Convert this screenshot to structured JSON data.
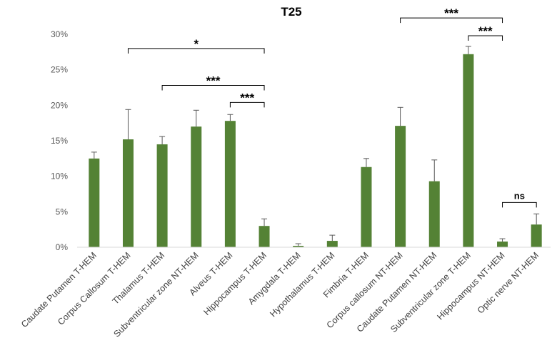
{
  "chart_data": {
    "type": "bar",
    "title": "T25",
    "categories": [
      "Caudate Putamen T-HEM",
      "Corpus Callosum T-HEM",
      "Thalamus T-HEM",
      "Subventricular zone NT-HEM",
      "Alveus T-HEM",
      "Hippocampus T-HEM",
      "Amygdala T-HEM",
      "Hypothalamus T-HEM",
      "Fimbria T-HEM",
      "Corpus callosum NT-HEM",
      "Caudate Putamen NT-HEM",
      "Subventricular zone T-HEM",
      "Hippocampus NT-HEM",
      "Optic nerve NT-HEM"
    ],
    "values": [
      12.5,
      15.2,
      14.5,
      17.0,
      17.8,
      3.0,
      0.2,
      0.9,
      11.3,
      17.1,
      9.3,
      27.2,
      0.8,
      3.2
    ],
    "errors": [
      0.9,
      4.2,
      1.1,
      2.3,
      0.9,
      1.0,
      0.3,
      0.8,
      1.2,
      2.6,
      3.0,
      1.1,
      0.4,
      1.5
    ],
    "ylim": [
      0,
      30
    ],
    "yticks": [
      0,
      5,
      10,
      15,
      20,
      25,
      30
    ],
    "ytick_labels": [
      "0%",
      "5%",
      "10%",
      "15%",
      "20%",
      "25%",
      "30%"
    ],
    "xlabel": "",
    "ylabel": "",
    "bar_color": "#548235",
    "error_color": "#595959",
    "grid": false,
    "legend": "none",
    "annotations": [
      {
        "from": 1,
        "to": 5,
        "label": "*",
        "level": 28.0
      },
      {
        "from": 2,
        "to": 5,
        "label": "***",
        "level": 22.8
      },
      {
        "from": 4,
        "to": 5,
        "label": "***",
        "level": 20.4
      },
      {
        "from": 9,
        "to": 12,
        "label": "***",
        "level": 32.3
      },
      {
        "from": 11,
        "to": 12,
        "label": "***",
        "level": 29.8
      },
      {
        "from": 12,
        "to": 13,
        "label": "ns",
        "level": 6.3
      }
    ]
  }
}
